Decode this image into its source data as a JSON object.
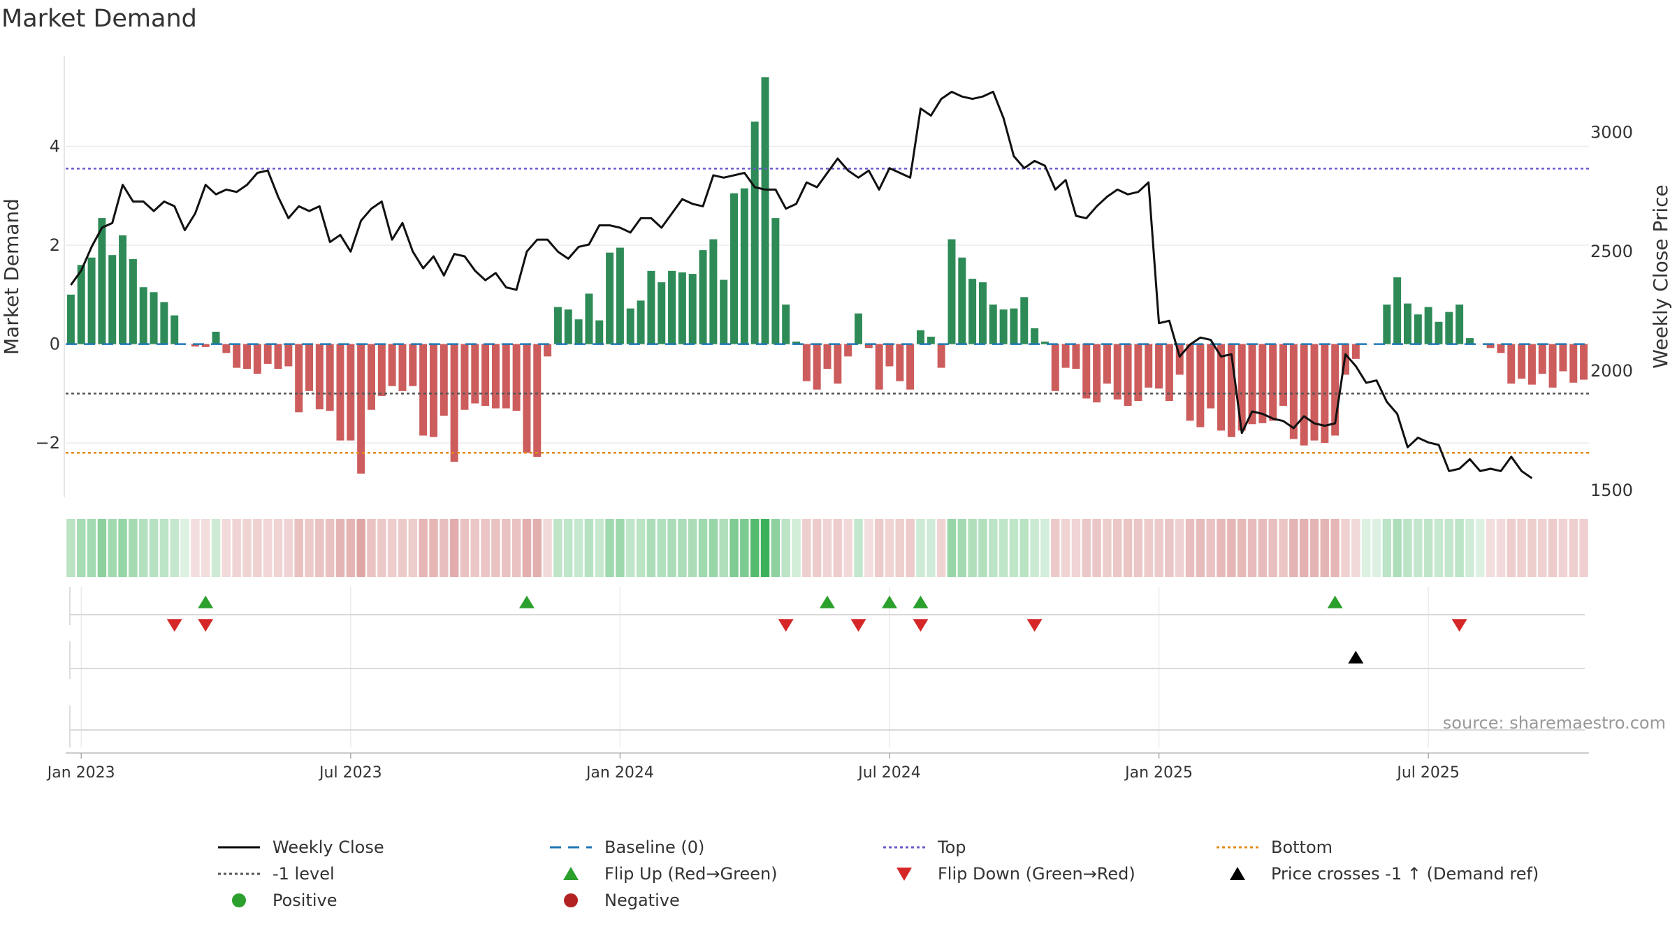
{
  "chart_data": {
    "type": "bar+line",
    "title": "Market Demand",
    "ylabel_left": "Market Demand",
    "ylabel_right": "Weekly Close Price",
    "source": "source: sharemaestro.com",
    "x_ticks": [
      "Jan 2023",
      "Jul 2023",
      "Jan 2024",
      "Jul 2024",
      "Jan 2025",
      "Jul 2025"
    ],
    "x_tick_weeks": [
      1.5,
      27.5,
      53.5,
      79.5,
      105.5,
      131.5
    ],
    "y_left_ticks": [
      -2,
      0,
      2,
      4
    ],
    "y_left_range": [
      -3.1,
      5.9
    ],
    "y_right_ticks": [
      1500,
      2000,
      2500,
      3000
    ],
    "y_right_range": [
      1470,
      3335
    ],
    "levels": {
      "baseline": 0,
      "top": 3.55,
      "minus_one": -1,
      "bottom": -2.2
    },
    "demand": [
      1.0,
      1.6,
      1.75,
      2.55,
      1.8,
      2.2,
      1.72,
      1.15,
      1.05,
      0.85,
      0.58,
      0.0,
      -0.05,
      -0.06,
      0.25,
      -0.18,
      -0.48,
      -0.5,
      -0.6,
      -0.4,
      -0.5,
      -0.45,
      -1.38,
      -0.95,
      -1.32,
      -1.35,
      -1.95,
      -1.95,
      -2.62,
      -1.33,
      -1.05,
      -0.85,
      -0.95,
      -0.85,
      -1.85,
      -1.88,
      -1.45,
      -2.38,
      -1.33,
      -1.2,
      -1.25,
      -1.3,
      -1.3,
      -1.35,
      -2.2,
      -2.28,
      -0.25,
      0.75,
      0.7,
      0.5,
      1.02,
      0.48,
      1.85,
      1.95,
      0.72,
      0.88,
      1.48,
      1.25,
      1.48,
      1.45,
      1.42,
      1.9,
      2.12,
      1.3,
      3.05,
      3.15,
      4.5,
      5.4,
      2.55,
      0.8,
      0.05,
      -0.75,
      -0.92,
      -0.5,
      -0.8,
      -0.25,
      0.62,
      -0.08,
      -0.92,
      -0.45,
      -0.75,
      -0.92,
      0.28,
      0.15,
      -0.48,
      2.12,
      1.75,
      1.32,
      1.25,
      0.8,
      0.7,
      0.72,
      0.95,
      0.32,
      0.05,
      -0.95,
      -0.48,
      -0.5,
      -1.1,
      -1.18,
      -0.8,
      -1.12,
      -1.25,
      -1.15,
      -0.88,
      -0.9,
      -1.15,
      -0.62,
      -1.55,
      -1.68,
      -1.3,
      -1.75,
      -1.88,
      -1.75,
      -1.62,
      -1.6,
      -1.55,
      -1.25,
      -1.92,
      -2.05,
      -1.95,
      -2.0,
      -1.85,
      -0.62,
      -0.3,
      0.0,
      0.0,
      0.8,
      1.35,
      0.82,
      0.6,
      0.75,
      0.45,
      0.65,
      0.8,
      0.12,
      0.0,
      -0.08,
      -0.18,
      -0.8,
      -0.7,
      -0.82,
      -0.6,
      -0.88,
      -0.55,
      -0.78,
      -0.72
    ],
    "close": [
      2360,
      2420,
      2520,
      2600,
      2620,
      2780,
      2710,
      2710,
      2670,
      2710,
      2690,
      2590,
      2660,
      2780,
      2740,
      2760,
      2750,
      2780,
      2830,
      2840,
      2730,
      2640,
      2690,
      2670,
      2690,
      2540,
      2570,
      2500,
      2630,
      2680,
      2710,
      2550,
      2620,
      2500,
      2430,
      2480,
      2400,
      2490,
      2480,
      2420,
      2380,
      2410,
      2350,
      2340,
      2500,
      2550,
      2550,
      2500,
      2470,
      2520,
      2530,
      2610,
      2610,
      2600,
      2580,
      2640,
      2640,
      2600,
      2660,
      2720,
      2700,
      2690,
      2820,
      2810,
      2820,
      2830,
      2770,
      2760,
      2760,
      2680,
      2700,
      2790,
      2770,
      2830,
      2890,
      2840,
      2810,
      2840,
      2760,
      2850,
      2830,
      2810,
      3100,
      3070,
      3140,
      3170,
      3150,
      3140,
      3150,
      3170,
      3060,
      2900,
      2850,
      2880,
      2860,
      2760,
      2800,
      2650,
      2640,
      2690,
      2730,
      2760,
      2740,
      2750,
      2790,
      2200,
      2210,
      2060,
      2110,
      2140,
      2130,
      2060,
      2070,
      1740,
      1830,
      1820,
      1800,
      1790,
      1760,
      1810,
      1780,
      1770,
      1780,
      2070,
      2020,
      1950,
      1960,
      1870,
      1820,
      1680,
      1720,
      1700,
      1690,
      1580,
      1590,
      1630,
      1580,
      1590,
      1580,
      1640,
      1580,
      1550
    ],
    "flip_up_weeks": [
      13,
      44,
      73,
      79,
      82,
      122
    ],
    "flip_down_weeks": [
      10,
      13,
      69,
      76,
      82,
      93,
      134
    ],
    "price_cross_weeks": [
      124
    ],
    "legend": [
      {
        "label": "Weekly Close",
        "symbol": "line",
        "color": "#000000"
      },
      {
        "label": "Baseline (0)",
        "symbol": "dashed",
        "color": "#1f77b4"
      },
      {
        "label": "Top",
        "symbol": "dotted",
        "color": "#6a5acd"
      },
      {
        "label": "Bottom",
        "symbol": "dotted",
        "color": "#e38b14"
      },
      {
        "label": "-1 level",
        "symbol": "dotted",
        "color": "#555555"
      },
      {
        "label": "Flip Up (Red→Green)",
        "symbol": "triangle-up",
        "color": "#2ca02c"
      },
      {
        "label": "Flip Down (Green→Red)",
        "symbol": "triangle-down",
        "color": "#d62728"
      },
      {
        "label": "Price crosses -1 ↑ (Demand ref)",
        "symbol": "triangle-up",
        "color": "#000000"
      },
      {
        "label": "Positive",
        "symbol": "circle",
        "color": "#2ca02c"
      },
      {
        "label": "Negative",
        "symbol": "circle",
        "color": "#b22222"
      }
    ]
  },
  "colors": {
    "positive_bar": "#2e8b57",
    "negative_bar": "#cd5c5c",
    "heat_positive": "#3cb15a",
    "heat_negative": "#cc6b6b",
    "line": "#111111"
  }
}
